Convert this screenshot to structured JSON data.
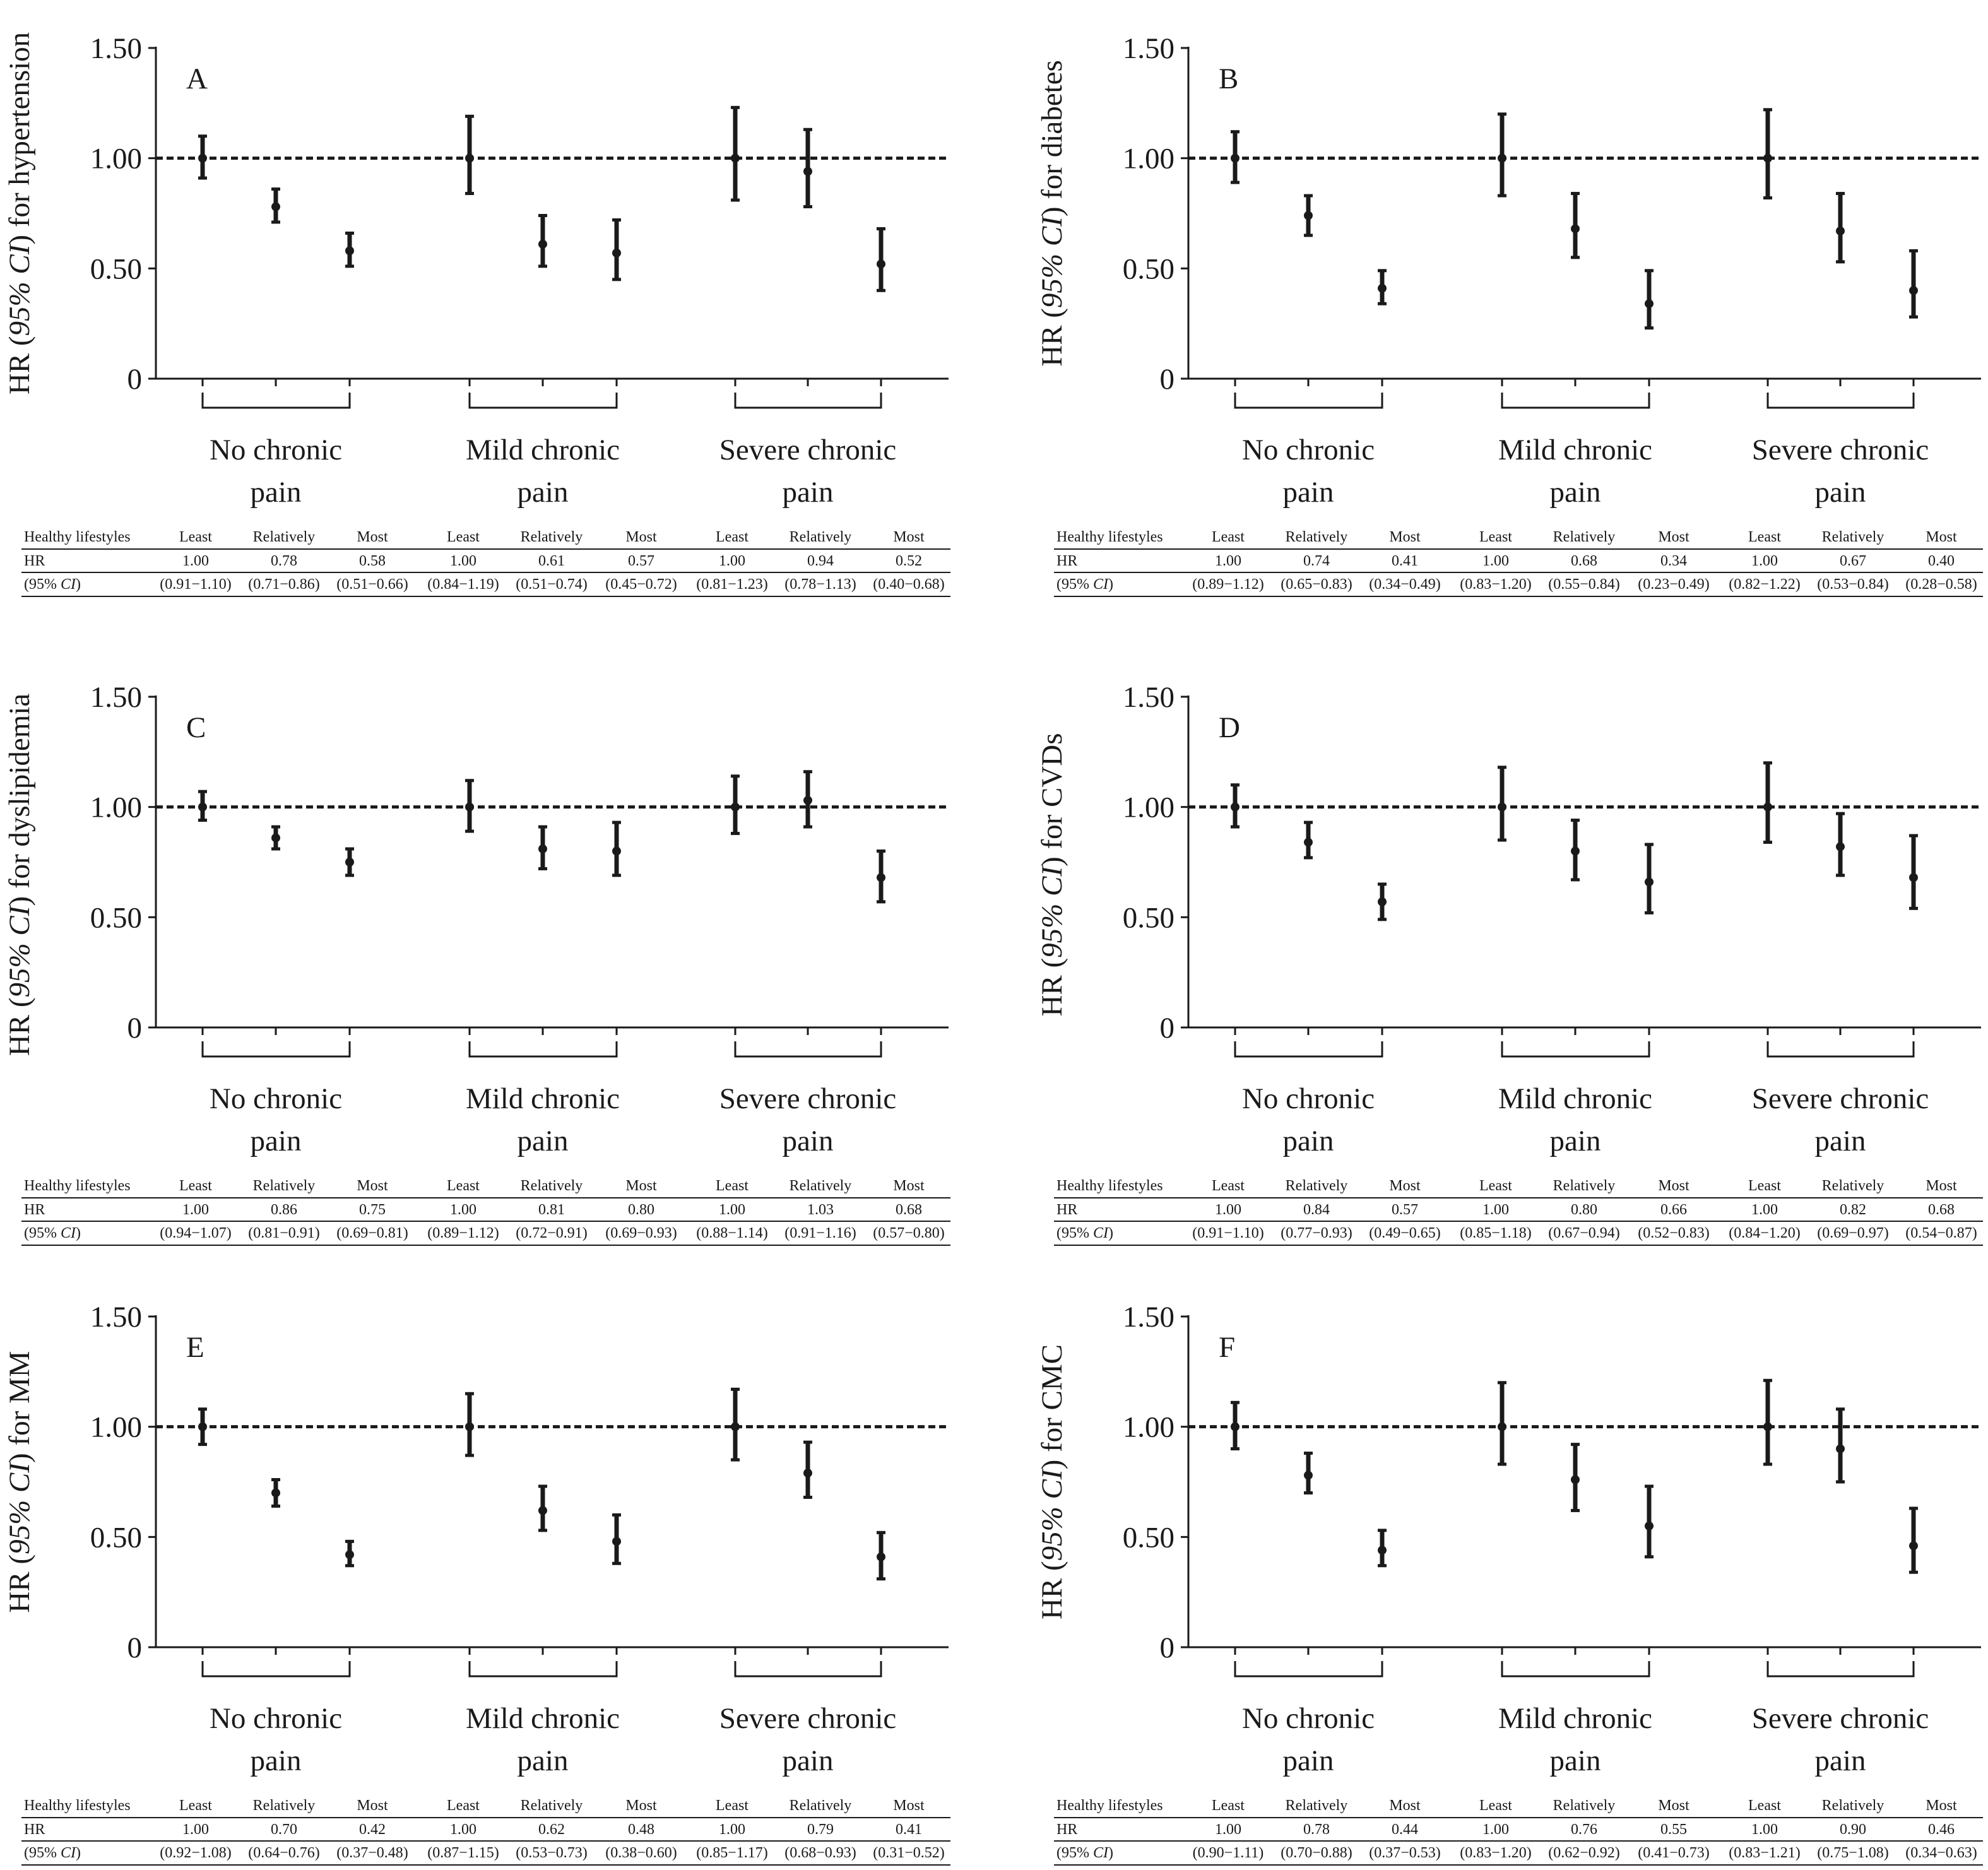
{
  "table_row_labels": {
    "lifestyle": "Healthy lifestyles",
    "hr": "HR",
    "ci": "(95% CI)"
  },
  "lifestyle_levels": [
    "Least",
    "Relatively",
    "Most"
  ],
  "group_labels": [
    [
      "No chronic",
      "pain"
    ],
    [
      "Mild chronic",
      "pain"
    ],
    [
      "Severe chronic",
      "pain"
    ]
  ],
  "colors": {
    "ink": "#1a1a1a",
    "background": "#ffffff"
  },
  "chart_data": [
    {
      "type": "scatter",
      "panel": "A",
      "ylabel_prefix": "HR (",
      "ylabel_italic": "95% CI",
      "ylabel_suffix": ") for hypertension",
      "ylim": [
        0,
        1.5
      ],
      "yticks": [
        "0",
        "0.50",
        "1.00",
        "1.50"
      ],
      "reference_line": 1.0,
      "hr": [
        1.0,
        0.78,
        0.58,
        1.0,
        0.61,
        0.57,
        1.0,
        0.94,
        0.52
      ],
      "ci_low": [
        0.91,
        0.71,
        0.51,
        0.84,
        0.51,
        0.45,
        0.81,
        0.78,
        0.4
      ],
      "ci_high": [
        1.1,
        0.86,
        0.66,
        1.19,
        0.74,
        0.72,
        1.23,
        1.13,
        0.68
      ],
      "hr_text": [
        "1.00",
        "0.78",
        "0.58",
        "1.00",
        "0.61",
        "0.57",
        "1.00",
        "0.94",
        "0.52"
      ],
      "ci_text": [
        "(0.91−1.10)",
        "(0.71−0.86)",
        "(0.51−0.66)",
        "(0.84−1.19)",
        "(0.51−0.74)",
        "(0.45−0.72)",
        "(0.81−1.23)",
        "(0.78−1.13)",
        "(0.40−0.68)"
      ]
    },
    {
      "type": "scatter",
      "panel": "B",
      "ylabel_prefix": "HR (",
      "ylabel_italic": "95% CI",
      "ylabel_suffix": ") for diabetes",
      "ylim": [
        0,
        1.5
      ],
      "yticks": [
        "0",
        "0.50",
        "1.00",
        "1.50"
      ],
      "reference_line": 1.0,
      "hr": [
        1.0,
        0.74,
        0.41,
        1.0,
        0.68,
        0.34,
        1.0,
        0.67,
        0.4
      ],
      "ci_low": [
        0.89,
        0.65,
        0.34,
        0.83,
        0.55,
        0.23,
        0.82,
        0.53,
        0.28
      ],
      "ci_high": [
        1.12,
        0.83,
        0.49,
        1.2,
        0.84,
        0.49,
        1.22,
        0.84,
        0.58
      ],
      "hr_text": [
        "1.00",
        "0.74",
        "0.41",
        "1.00",
        "0.68",
        "0.34",
        "1.00",
        "0.67",
        "0.40"
      ],
      "ci_text": [
        "(0.89−1.12)",
        "(0.65−0.83)",
        "(0.34−0.49)",
        "(0.83−1.20)",
        "(0.55−0.84)",
        "(0.23−0.49)",
        "(0.82−1.22)",
        "(0.53−0.84)",
        "(0.28−0.58)"
      ]
    },
    {
      "type": "scatter",
      "panel": "C",
      "ylabel_prefix": "HR (",
      "ylabel_italic": "95% CI",
      "ylabel_suffix": ") for dyslipidemia",
      "ylim": [
        0,
        1.5
      ],
      "yticks": [
        "0",
        "0.50",
        "1.00",
        "1.50"
      ],
      "reference_line": 1.0,
      "hr": [
        1.0,
        0.86,
        0.75,
        1.0,
        0.81,
        0.8,
        1.0,
        1.03,
        0.68
      ],
      "ci_low": [
        0.94,
        0.81,
        0.69,
        0.89,
        0.72,
        0.69,
        0.88,
        0.91,
        0.57
      ],
      "ci_high": [
        1.07,
        0.91,
        0.81,
        1.12,
        0.91,
        0.93,
        1.14,
        1.16,
        0.8
      ],
      "hr_text": [
        "1.00",
        "0.86",
        "0.75",
        "1.00",
        "0.81",
        "0.80",
        "1.00",
        "1.03",
        "0.68"
      ],
      "ci_text": [
        "(0.94−1.07)",
        "(0.81−0.91)",
        "(0.69−0.81)",
        "(0.89−1.12)",
        "(0.72−0.91)",
        "(0.69−0.93)",
        "(0.88−1.14)",
        "(0.91−1.16)",
        "(0.57−0.80)"
      ]
    },
    {
      "type": "scatter",
      "panel": "D",
      "ylabel_prefix": "HR (",
      "ylabel_italic": "95% CI",
      "ylabel_suffix": ") for CVDs",
      "ylim": [
        0,
        1.5
      ],
      "yticks": [
        "0",
        "0.50",
        "1.00",
        "1.50"
      ],
      "reference_line": 1.0,
      "hr": [
        1.0,
        0.84,
        0.57,
        1.0,
        0.8,
        0.66,
        1.0,
        0.82,
        0.68
      ],
      "ci_low": [
        0.91,
        0.77,
        0.49,
        0.85,
        0.67,
        0.52,
        0.84,
        0.69,
        0.54
      ],
      "ci_high": [
        1.1,
        0.93,
        0.65,
        1.18,
        0.94,
        0.83,
        1.2,
        0.97,
        0.87
      ],
      "hr_text": [
        "1.00",
        "0.84",
        "0.57",
        "1.00",
        "0.80",
        "0.66",
        "1.00",
        "0.82",
        "0.68"
      ],
      "ci_text": [
        "(0.91−1.10)",
        "(0.77−0.93)",
        "(0.49−0.65)",
        "(0.85−1.18)",
        "(0.67−0.94)",
        "(0.52−0.83)",
        "(0.84−1.20)",
        "(0.69−0.97)",
        "(0.54−0.87)"
      ]
    },
    {
      "type": "scatter",
      "panel": "E",
      "ylabel_prefix": "HR (",
      "ylabel_italic": "95% CI",
      "ylabel_suffix": ") for MM",
      "ylim": [
        0,
        1.5
      ],
      "yticks": [
        "0",
        "0.50",
        "1.00",
        "1.50"
      ],
      "reference_line": 1.0,
      "hr": [
        1.0,
        0.7,
        0.42,
        1.0,
        0.62,
        0.48,
        1.0,
        0.79,
        0.41
      ],
      "ci_low": [
        0.92,
        0.64,
        0.37,
        0.87,
        0.53,
        0.38,
        0.85,
        0.68,
        0.31
      ],
      "ci_high": [
        1.08,
        0.76,
        0.48,
        1.15,
        0.73,
        0.6,
        1.17,
        0.93,
        0.52
      ],
      "hr_text": [
        "1.00",
        "0.70",
        "0.42",
        "1.00",
        "0.62",
        "0.48",
        "1.00",
        "0.79",
        "0.41"
      ],
      "ci_text": [
        "(0.92−1.08)",
        "(0.64−0.76)",
        "(0.37−0.48)",
        "(0.87−1.15)",
        "(0.53−0.73)",
        "(0.38−0.60)",
        "(0.85−1.17)",
        "(0.68−0.93)",
        "(0.31−0.52)"
      ]
    },
    {
      "type": "scatter",
      "panel": "F",
      "ylabel_prefix": "HR (",
      "ylabel_italic": "95% CI",
      "ylabel_suffix": ") for CMC",
      "ylim": [
        0,
        1.5
      ],
      "yticks": [
        "0",
        "0.50",
        "1.00",
        "1.50"
      ],
      "reference_line": 1.0,
      "hr": [
        1.0,
        0.78,
        0.44,
        1.0,
        0.76,
        0.55,
        1.0,
        0.9,
        0.46
      ],
      "ci_low": [
        0.9,
        0.7,
        0.37,
        0.83,
        0.62,
        0.41,
        0.83,
        0.75,
        0.34
      ],
      "ci_high": [
        1.11,
        0.88,
        0.53,
        1.2,
        0.92,
        0.73,
        1.21,
        1.08,
        0.63
      ],
      "hr_text": [
        "1.00",
        "0.78",
        "0.44",
        "1.00",
        "0.76",
        "0.55",
        "1.00",
        "0.90",
        "0.46"
      ],
      "ci_text": [
        "(0.90−1.11)",
        "(0.70−0.88)",
        "(0.37−0.53)",
        "(0.83−1.20)",
        "(0.62−0.92)",
        "(0.41−0.73)",
        "(0.83−1.21)",
        "(0.75−1.08)",
        "(0.34−0.63)"
      ]
    }
  ]
}
